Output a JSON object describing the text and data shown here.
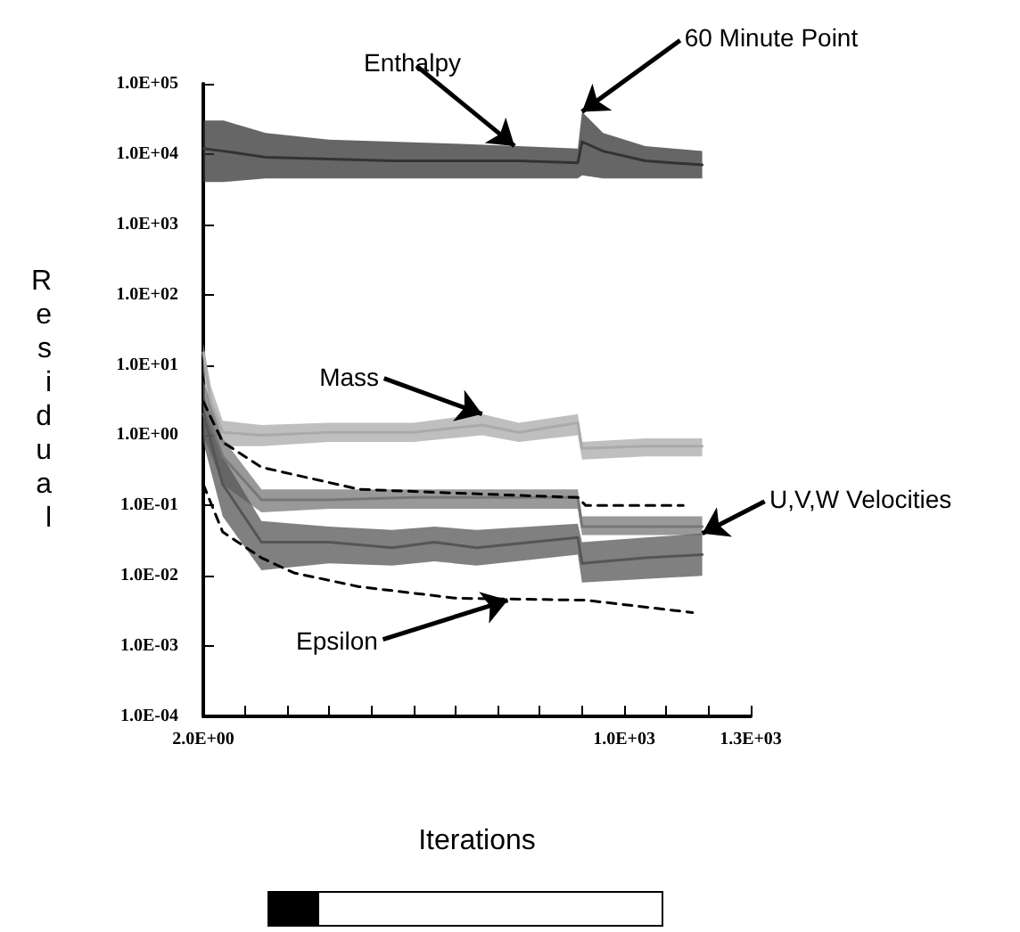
{
  "chart_data": {
    "type": "line",
    "xlabel": "Iterations",
    "ylabel": "Residual",
    "log": "y",
    "grid": false,
    "marker": "none",
    "xlim": [
      2,
      1300
    ],
    "ylim": [
      0.0001,
      100000
    ],
    "xticks": [
      {
        "value": 2,
        "label": "2.0E+00"
      },
      {
        "value": 100,
        "label": null
      },
      {
        "value": 200,
        "label": null
      },
      {
        "value": 300,
        "label": null
      },
      {
        "value": 400,
        "label": null
      },
      {
        "value": 500,
        "label": null
      },
      {
        "value": 600,
        "label": null
      },
      {
        "value": 700,
        "label": null
      },
      {
        "value": 800,
        "label": null
      },
      {
        "value": 900,
        "label": null
      },
      {
        "value": 1000,
        "label": "1.0E+03"
      },
      {
        "value": 1100,
        "label": null
      },
      {
        "value": 1200,
        "label": null
      },
      {
        "value": 1300,
        "label": "1.3E+03"
      }
    ],
    "yticks": [
      {
        "value": 0.0001,
        "label": "1.0E-04"
      },
      {
        "value": 0.001,
        "label": "1.0E-03"
      },
      {
        "value": 0.01,
        "label": "1.0E-02"
      },
      {
        "value": 0.1,
        "label": "1.0E-01"
      },
      {
        "value": 1,
        "label": "1.0E+00"
      },
      {
        "value": 10,
        "label": "1.0E+01"
      },
      {
        "value": 100,
        "label": "1.0E+02"
      },
      {
        "value": 1000,
        "label": "1.0E+03"
      },
      {
        "value": 10000,
        "label": "1.0E+04"
      },
      {
        "value": 100000,
        "label": "1.0E+05"
      }
    ],
    "series": [
      {
        "color": "#333333",
        "x": [
          2,
          50,
          150,
          300,
          450,
          600,
          750,
          890,
          900,
          950,
          1050,
          1185
        ],
        "values": [
          12000,
          11000,
          9000,
          8500,
          8000,
          8000,
          8000,
          7500,
          15000,
          11000,
          8000,
          7000
        ],
        "lower": [
          4000,
          4000,
          4500,
          4500,
          4500,
          4500,
          4500,
          4500,
          5000,
          4500,
          4500,
          4500
        ],
        "upper": [
          30000,
          30000,
          20000,
          16000,
          15000,
          14000,
          13000,
          12000,
          40000,
          20000,
          13000,
          11000
        ]
      },
      {
        "color": "#aaaaaa",
        "x": [
          2,
          20,
          48,
          140,
          300,
          500,
          663,
          750,
          890,
          900,
          1050,
          1185
        ],
        "values": [
          15,
          3,
          1.1,
          1,
          1.1,
          1.1,
          1.4,
          1.1,
          1.5,
          0.65,
          0.7,
          0.7
        ],
        "lower": [
          8,
          1.5,
          0.7,
          0.7,
          0.8,
          0.8,
          1,
          0.8,
          1,
          0.45,
          0.5,
          0.5
        ],
        "upper": [
          20,
          5,
          1.6,
          1.4,
          1.5,
          1.5,
          2,
          1.5,
          2,
          0.8,
          0.9,
          0.9
        ]
      },
      {
        "color": "#777777",
        "x": [
          2,
          48,
          140,
          300,
          500,
          700,
          890,
          900,
          1050,
          1185
        ],
        "values": [
          3,
          0.5,
          0.12,
          0.12,
          0.13,
          0.13,
          0.13,
          0.05,
          0.05,
          0.05
        ],
        "lower": [
          1,
          0.2,
          0.08,
          0.09,
          0.09,
          0.09,
          0.09,
          0.038,
          0.038,
          0.038
        ],
        "upper": [
          6,
          0.9,
          0.17,
          0.17,
          0.17,
          0.17,
          0.17,
          0.07,
          0.07,
          0.07
        ]
      },
      {
        "color": "#555555",
        "x": [
          2,
          48,
          140,
          300,
          450,
          550,
          650,
          890,
          900,
          1050,
          1185
        ],
        "values": [
          2,
          0.2,
          0.03,
          0.03,
          0.025,
          0.03,
          0.025,
          0.035,
          0.015,
          0.018,
          0.02
        ],
        "lower": [
          0.8,
          0.07,
          0.012,
          0.015,
          0.014,
          0.016,
          0.014,
          0.02,
          0.008,
          0.009,
          0.01
        ],
        "upper": [
          4,
          0.5,
          0.06,
          0.05,
          0.045,
          0.05,
          0.045,
          0.055,
          0.03,
          0.035,
          0.04
        ]
      },
      {
        "color": "#000000",
        "line_style": "dashed",
        "x": [
          2,
          48,
          140,
          371,
          601,
          890,
          909,
          1140
        ],
        "values": [
          3,
          0.8,
          0.35,
          0.17,
          0.15,
          0.13,
          0.1,
          0.1
        ]
      },
      {
        "color": "#000000",
        "line_style": "dashed",
        "x": [
          2,
          48,
          140,
          217,
          371,
          601,
          909,
          1162
        ],
        "values": [
          0.2,
          0.042,
          0.018,
          0.011,
          0.007,
          0.0048,
          0.0045,
          0.003
        ]
      }
    ],
    "annotations": [
      {
        "text": "Enthalpy",
        "x": 740,
        "y": 13000
      },
      {
        "text": "60 Minute Point",
        "x": 900,
        "y": 40000
      },
      {
        "text": "Mass",
        "x": 663,
        "y": 2
      },
      {
        "text": "U,V,W Velocities",
        "x": 1185,
        "y": 0.04
      },
      {
        "text": "Epsilon",
        "x": 724,
        "y": 0.0045
      }
    ]
  }
}
